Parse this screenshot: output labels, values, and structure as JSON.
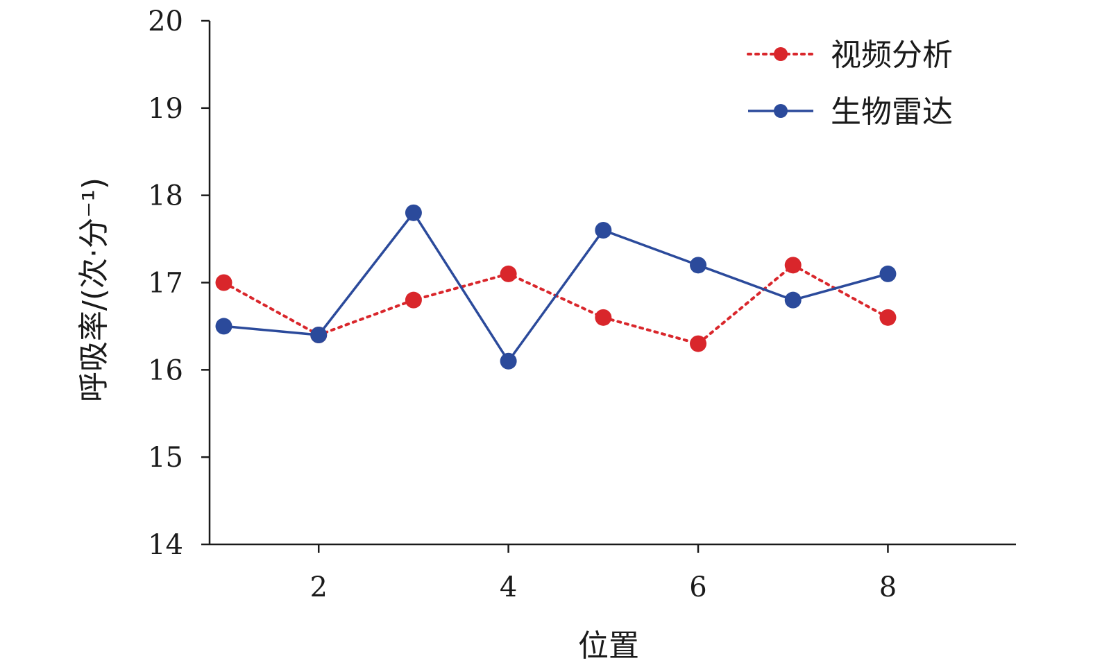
{
  "chart_data": {
    "type": "line",
    "xlabel": "位置",
    "ylabel": "呼吸率/(次·分⁻¹)",
    "xlim": [
      0.85,
      9.35
    ],
    "ylim": [
      14,
      20
    ],
    "x_ticks": [
      2,
      4,
      6,
      8
    ],
    "y_ticks": [
      14,
      15,
      16,
      17,
      18,
      19,
      20
    ],
    "x": [
      1,
      2,
      3,
      4,
      5,
      6,
      7,
      8
    ],
    "grid": false,
    "legend_position": "top-right",
    "series": [
      {
        "name": "视频分析",
        "values": [
          17.0,
          16.4,
          16.8,
          17.1,
          16.6,
          16.3,
          17.2,
          16.6
        ],
        "color": "#d9262b",
        "line_style": "dotted"
      },
      {
        "name": "生物雷达",
        "values": [
          16.5,
          16.4,
          17.8,
          16.1,
          17.6,
          17.2,
          16.8,
          17.1
        ],
        "color": "#2b4a9b",
        "line_style": "solid"
      }
    ]
  }
}
